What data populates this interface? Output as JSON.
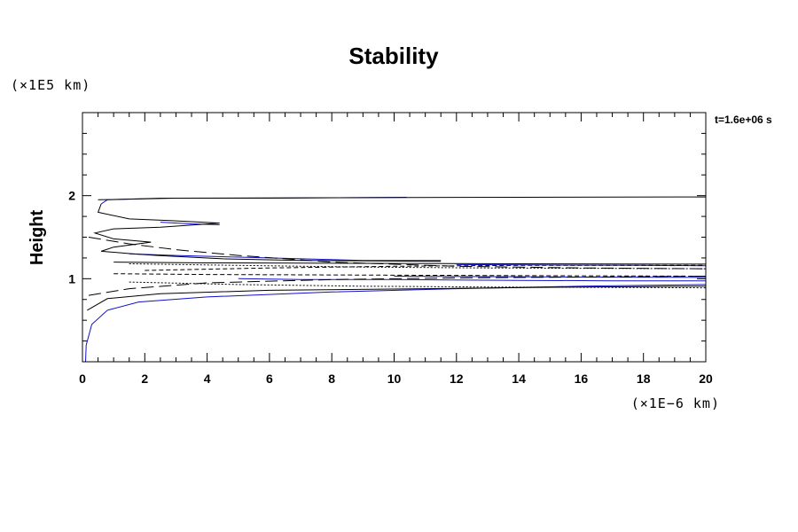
{
  "chart_data": {
    "type": "line",
    "subtype": "contour",
    "title": "Stability",
    "ylabel": "Height",
    "xlabel": "",
    "x_unit_label": "(×1E−6 km)",
    "y_unit_label": "(×1E5 km)",
    "annotation": "t=1.6e+06 s",
    "xlim": [
      0,
      20
    ],
    "ylim": [
      0,
      3
    ],
    "x_ticks": [
      0,
      2,
      4,
      6,
      8,
      10,
      12,
      14,
      16,
      18,
      20
    ],
    "y_ticks": [
      1,
      2
    ],
    "x_minor_step": 0.5,
    "y_minor_step": 0.25,
    "grid": false,
    "colors": {
      "primary_contour": "#1010c8",
      "secondary_contour": "#000000"
    },
    "series": [
      {
        "style": "blue",
        "points": [
          [
            0.1,
            0.0
          ],
          [
            0.12,
            0.2
          ],
          [
            0.3,
            0.45
          ],
          [
            0.8,
            0.62
          ],
          [
            1.8,
            0.72
          ],
          [
            4,
            0.78
          ],
          [
            8,
            0.84
          ],
          [
            12,
            0.88
          ],
          [
            16,
            0.91
          ],
          [
            20,
            0.93
          ]
        ]
      },
      {
        "style": "blue",
        "points": [
          [
            0.6,
            1.9
          ],
          [
            0.8,
            1.95
          ],
          [
            2.5,
            1.97
          ],
          [
            6,
            1.97
          ],
          [
            10.4,
            1.98
          ]
        ]
      },
      {
        "style": "blue",
        "points": [
          [
            2.5,
            1.68
          ],
          [
            3.5,
            1.66
          ],
          [
            4.4,
            1.65
          ]
        ]
      },
      {
        "style": "blue",
        "points": [
          [
            1.5,
            1.3
          ],
          [
            3,
            1.28
          ],
          [
            6,
            1.25
          ],
          [
            9,
            1.22
          ],
          [
            11.5,
            1.22
          ]
        ]
      },
      {
        "style": "blue",
        "points": [
          [
            5,
            1.0
          ],
          [
            7,
            0.99
          ],
          [
            10,
            0.99
          ],
          [
            14,
            0.98
          ],
          [
            17,
            0.975
          ],
          [
            20,
            0.975
          ]
        ]
      },
      {
        "style": "blue",
        "points": [
          [
            12,
            1.17
          ],
          [
            15,
            1.165
          ],
          [
            18,
            1.16
          ],
          [
            20,
            1.155
          ]
        ]
      },
      {
        "style": "blue",
        "points": [
          [
            10,
            1.03
          ],
          [
            13,
            1.025
          ],
          [
            16,
            1.02
          ],
          [
            20,
            1.015
          ]
        ]
      },
      {
        "style": "solid",
        "points": [
          [
            0.5,
            1.95
          ],
          [
            3,
            1.97
          ],
          [
            8,
            1.975
          ],
          [
            14,
            1.98
          ],
          [
            20,
            1.985
          ]
        ]
      },
      {
        "style": "solid",
        "points": [
          [
            0.6,
            1.9
          ],
          [
            0.5,
            1.8
          ],
          [
            1.5,
            1.72
          ],
          [
            2.8,
            1.7
          ],
          [
            4.4,
            1.67
          ],
          [
            2.5,
            1.62
          ],
          [
            1,
            1.6
          ],
          [
            0.4,
            1.55
          ],
          [
            1,
            1.48
          ],
          [
            2.2,
            1.44
          ],
          [
            1,
            1.38
          ],
          [
            0.6,
            1.33
          ],
          [
            1.6,
            1.3
          ],
          [
            2.4,
            1.28
          ],
          [
            4.5,
            1.24
          ],
          [
            7,
            1.22
          ],
          [
            11.5,
            1.21
          ]
        ]
      },
      {
        "style": "solid",
        "points": [
          [
            0.15,
            0.62
          ],
          [
            0.8,
            0.76
          ],
          [
            2.5,
            0.82
          ],
          [
            6,
            0.86
          ],
          [
            11,
            0.88
          ],
          [
            16,
            0.9
          ],
          [
            20,
            0.91
          ]
        ]
      },
      {
        "style": "solid",
        "points": [
          [
            1,
            1.2
          ],
          [
            4,
            1.19
          ],
          [
            9,
            1.185
          ],
          [
            14,
            1.18
          ],
          [
            20,
            1.175
          ]
        ]
      },
      {
        "style": "longdash",
        "points": [
          [
            0.2,
            1.5
          ],
          [
            1.5,
            1.42
          ],
          [
            3,
            1.35
          ],
          [
            5,
            1.28
          ],
          [
            8,
            1.2
          ],
          [
            12,
            1.15
          ],
          [
            16,
            1.13
          ],
          [
            20,
            1.12
          ]
        ]
      },
      {
        "style": "longdash",
        "points": [
          [
            0.2,
            0.8
          ],
          [
            1.5,
            0.88
          ],
          [
            4,
            0.95
          ],
          [
            8,
            0.99
          ],
          [
            12,
            1.01
          ],
          [
            16,
            1.02
          ],
          [
            20,
            1.03
          ]
        ]
      },
      {
        "style": "dash",
        "points": [
          [
            1,
            1.06
          ],
          [
            4,
            1.05
          ],
          [
            8,
            1.045
          ],
          [
            12,
            1.04
          ],
          [
            16,
            1.035
          ],
          [
            20,
            1.03
          ]
        ]
      },
      {
        "style": "dash",
        "points": [
          [
            2,
            1.1
          ],
          [
            6,
            1.13
          ],
          [
            10,
            1.15
          ],
          [
            14,
            1.16
          ],
          [
            20,
            1.16
          ]
        ]
      },
      {
        "style": "dot",
        "points": [
          [
            1.5,
            0.96
          ],
          [
            5,
            0.93
          ],
          [
            9,
            0.91
          ],
          [
            13,
            0.9
          ],
          [
            17,
            0.895
          ],
          [
            20,
            0.89
          ]
        ]
      },
      {
        "style": "dot",
        "points": [
          [
            1.5,
            1.18
          ],
          [
            5,
            1.16
          ],
          [
            9,
            1.14
          ],
          [
            13,
            1.13
          ],
          [
            20,
            1.12
          ]
        ]
      }
    ]
  }
}
